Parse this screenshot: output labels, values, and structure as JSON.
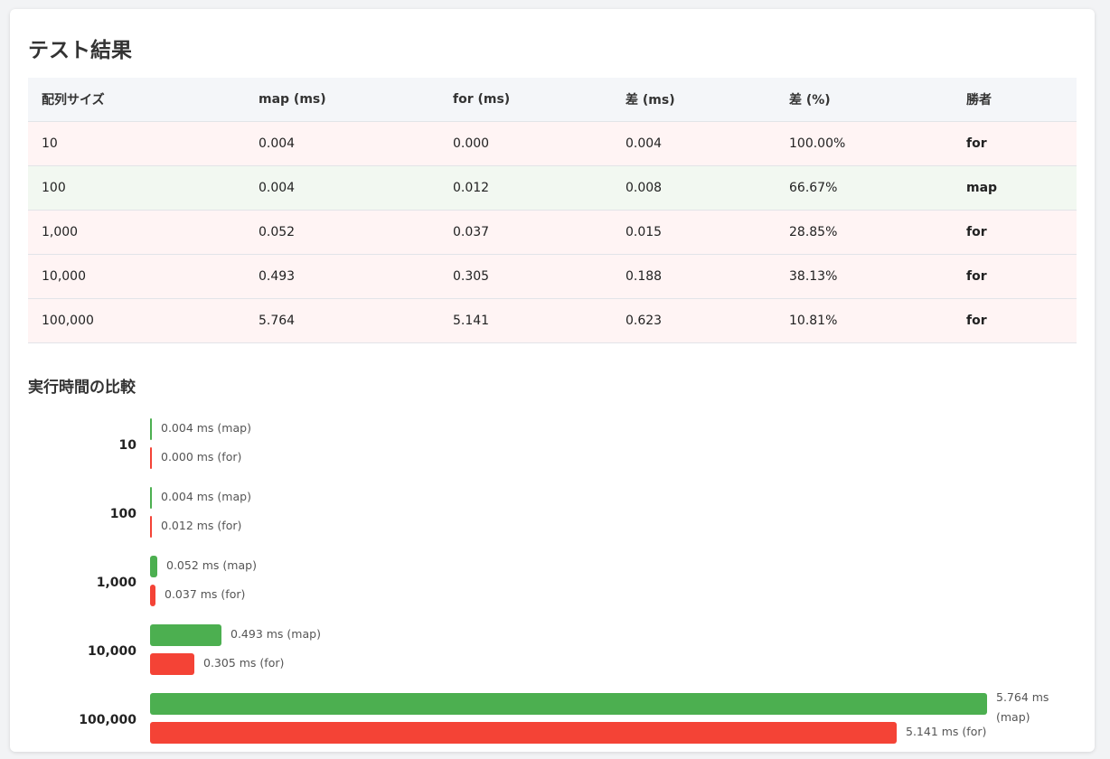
{
  "title": "テスト結果",
  "table": {
    "headers": [
      "配列サイズ",
      "map (ms)",
      "for (ms)",
      "差 (ms)",
      "差 (%)",
      "勝者"
    ],
    "rows": [
      {
        "size": "10",
        "map": "0.004",
        "for": "0.000",
        "diff": "0.004",
        "pct": "100.00%",
        "winner": "for"
      },
      {
        "size": "100",
        "map": "0.004",
        "for": "0.012",
        "diff": "0.008",
        "pct": "66.67%",
        "winner": "map"
      },
      {
        "size": "1,000",
        "map": "0.052",
        "for": "0.037",
        "diff": "0.015",
        "pct": "28.85%",
        "winner": "for"
      },
      {
        "size": "10,000",
        "map": "0.493",
        "for": "0.305",
        "diff": "0.188",
        "pct": "38.13%",
        "winner": "for"
      },
      {
        "size": "100,000",
        "map": "5.764",
        "for": "5.141",
        "diff": "0.623",
        "pct": "10.81%",
        "winner": "for"
      }
    ]
  },
  "chart_title": "実行時間の比較",
  "chart_data": {
    "type": "bar",
    "orientation": "horizontal",
    "title": "実行時間の比較",
    "categories": [
      "10",
      "100",
      "1,000",
      "10,000",
      "100,000"
    ],
    "series": [
      {
        "name": "map",
        "values": [
          0.004,
          0.004,
          0.052,
          0.493,
          5.764
        ],
        "labels": [
          "0.004 ms (map)",
          "0.004 ms (map)",
          "0.052 ms (map)",
          "0.493 ms (map)",
          "5.764 ms (map)"
        ]
      },
      {
        "name": "for",
        "values": [
          0.0,
          0.012,
          0.037,
          0.305,
          5.141
        ],
        "labels": [
          "0.000 ms (for)",
          "0.012 ms (for)",
          "0.037 ms (for)",
          "0.305 ms (for)",
          "5.141 ms (for)"
        ]
      }
    ],
    "xlim": [
      0,
      5.764
    ],
    "grid": false
  },
  "colors": {
    "map": "#4caf50",
    "for": "#f44336",
    "map_row_bg": "#f2f8f1",
    "for_row_bg": "#fff4f4"
  }
}
